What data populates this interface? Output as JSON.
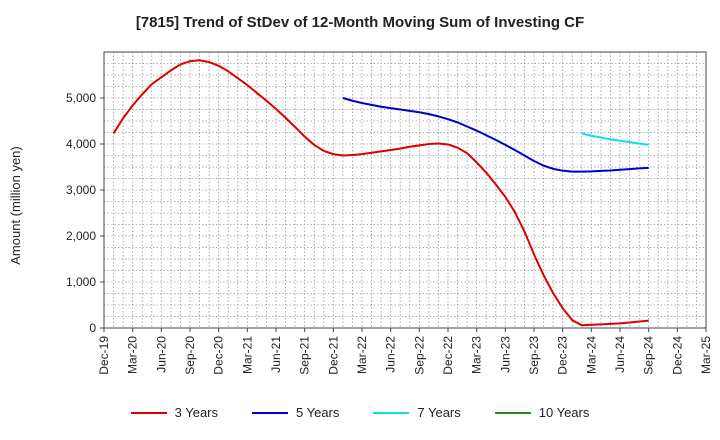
{
  "chart_data": {
    "type": "line",
    "title": "[7815]  Trend of StDev of 12-Month Moving Sum of Investing CF",
    "xlabel": "",
    "ylabel": "Amount (million yen)",
    "x_ticks": [
      "Dec-19",
      "Mar-20",
      "Jun-20",
      "Sep-20",
      "Dec-20",
      "Mar-21",
      "Jun-21",
      "Sep-21",
      "Dec-21",
      "Mar-22",
      "Jun-22",
      "Sep-22",
      "Dec-22",
      "Mar-23",
      "Jun-23",
      "Sep-23",
      "Dec-23",
      "Mar-24",
      "Jun-24",
      "Sep-24",
      "Dec-24",
      "Mar-25"
    ],
    "y_ticks": [
      0,
      1000,
      2000,
      3000,
      4000,
      5000
    ],
    "y_tick_labels": [
      "0",
      "1,000",
      "2,000",
      "3,000",
      "4,000",
      "5,000"
    ],
    "ylim": [
      0,
      6000
    ],
    "grid": true,
    "legend_position": "bottom",
    "series": [
      {
        "name": "3 Years",
        "color": "#dd0000",
        "points": [
          [
            "Jan-20",
            4230
          ],
          [
            "Feb-20",
            4560
          ],
          [
            "Mar-20",
            4840
          ],
          [
            "Apr-20",
            5080
          ],
          [
            "May-20",
            5300
          ],
          [
            "Jun-20",
            5450
          ],
          [
            "Jul-20",
            5600
          ],
          [
            "Aug-20",
            5730
          ],
          [
            "Sep-20",
            5800
          ],
          [
            "Oct-20",
            5820
          ],
          [
            "Nov-20",
            5780
          ],
          [
            "Dec-20",
            5700
          ],
          [
            "Jan-21",
            5580
          ],
          [
            "Feb-21",
            5430
          ],
          [
            "Mar-21",
            5280
          ],
          [
            "Apr-21",
            5110
          ],
          [
            "May-21",
            4940
          ],
          [
            "Jun-21",
            4760
          ],
          [
            "Jul-21",
            4570
          ],
          [
            "Aug-21",
            4370
          ],
          [
            "Sep-21",
            4160
          ],
          [
            "Oct-21",
            3980
          ],
          [
            "Nov-21",
            3850
          ],
          [
            "Dec-21",
            3780
          ],
          [
            "Jan-22",
            3750
          ],
          [
            "Feb-22",
            3760
          ],
          [
            "Mar-22",
            3780
          ],
          [
            "Apr-22",
            3810
          ],
          [
            "May-22",
            3840
          ],
          [
            "Jun-22",
            3870
          ],
          [
            "Jul-22",
            3900
          ],
          [
            "Aug-22",
            3940
          ],
          [
            "Sep-22",
            3970
          ],
          [
            "Oct-22",
            4000
          ],
          [
            "Nov-22",
            4010
          ],
          [
            "Dec-22",
            3990
          ],
          [
            "Jan-23",
            3920
          ],
          [
            "Feb-23",
            3800
          ],
          [
            "Mar-23",
            3600
          ],
          [
            "Apr-23",
            3380
          ],
          [
            "May-23",
            3120
          ],
          [
            "Jun-23",
            2850
          ],
          [
            "Jul-23",
            2520
          ],
          [
            "Aug-23",
            2100
          ],
          [
            "Sep-23",
            1600
          ],
          [
            "Oct-23",
            1150
          ],
          [
            "Nov-23",
            760
          ],
          [
            "Dec-23",
            430
          ],
          [
            "Jan-24",
            170
          ],
          [
            "Feb-24",
            60
          ],
          [
            "Mar-24",
            70
          ],
          [
            "Apr-24",
            80
          ],
          [
            "May-24",
            90
          ],
          [
            "Jun-24",
            100
          ],
          [
            "Jul-24",
            120
          ],
          [
            "Aug-24",
            140
          ],
          [
            "Sep-24",
            160
          ]
        ]
      },
      {
        "name": "5 Years",
        "color": "#0000cc",
        "points": [
          [
            "Jan-22",
            5000
          ],
          [
            "Feb-22",
            4940
          ],
          [
            "Mar-22",
            4890
          ],
          [
            "Apr-22",
            4850
          ],
          [
            "May-22",
            4810
          ],
          [
            "Jun-22",
            4780
          ],
          [
            "Jul-22",
            4750
          ],
          [
            "Aug-22",
            4720
          ],
          [
            "Sep-22",
            4690
          ],
          [
            "Oct-22",
            4650
          ],
          [
            "Nov-22",
            4600
          ],
          [
            "Dec-22",
            4540
          ],
          [
            "Jan-23",
            4470
          ],
          [
            "Feb-23",
            4380
          ],
          [
            "Mar-23",
            4290
          ],
          [
            "Apr-23",
            4190
          ],
          [
            "May-23",
            4090
          ],
          [
            "Jun-23",
            3980
          ],
          [
            "Jul-23",
            3870
          ],
          [
            "Aug-23",
            3750
          ],
          [
            "Sep-23",
            3630
          ],
          [
            "Oct-23",
            3530
          ],
          [
            "Nov-23",
            3460
          ],
          [
            "Dec-23",
            3420
          ],
          [
            "Jan-24",
            3400
          ],
          [
            "Feb-24",
            3400
          ],
          [
            "Mar-24",
            3405
          ],
          [
            "Apr-24",
            3415
          ],
          [
            "May-24",
            3425
          ],
          [
            "Jun-24",
            3440
          ],
          [
            "Jul-24",
            3455
          ],
          [
            "Aug-24",
            3470
          ],
          [
            "Sep-24",
            3480
          ]
        ]
      },
      {
        "name": "7 Years",
        "color": "#00e5ee",
        "points": [
          [
            "Feb-24",
            4230
          ],
          [
            "Mar-24",
            4180
          ],
          [
            "Apr-24",
            4140
          ],
          [
            "May-24",
            4100
          ],
          [
            "Jun-24",
            4070
          ],
          [
            "Jul-24",
            4040
          ],
          [
            "Aug-24",
            4010
          ],
          [
            "Sep-24",
            3980
          ]
        ]
      },
      {
        "name": "10 Years",
        "color": "#228b22",
        "points": []
      }
    ]
  }
}
